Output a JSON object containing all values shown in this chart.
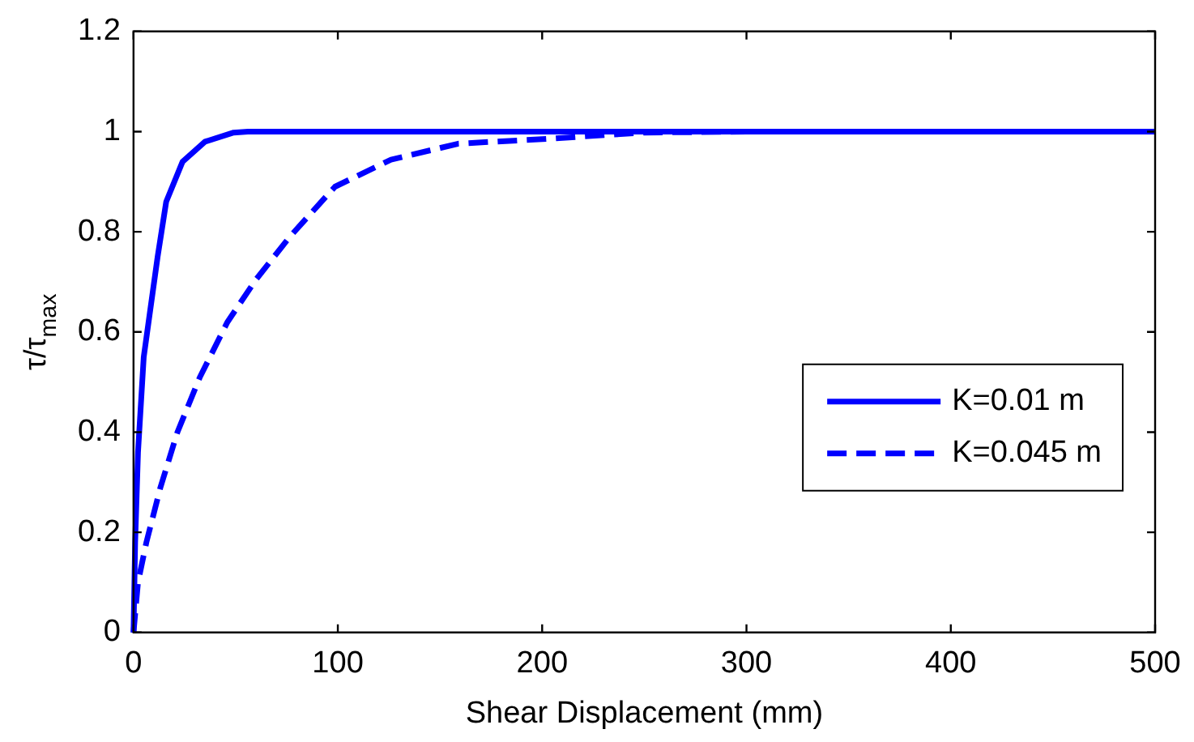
{
  "chart_data": {
    "type": "line",
    "xlabel": "Shear Displacement (mm)",
    "ylabel": "τ/τ$_{max}$",
    "xlim": [
      0,
      500
    ],
    "xticks": [
      0,
      100,
      200,
      300,
      400,
      500
    ],
    "ylim": [
      0,
      1.2
    ],
    "yticks": [
      0,
      0.2,
      0.4,
      0.6,
      0.8,
      1,
      1.2
    ],
    "grid": false,
    "legend": "right",
    "marker": "none",
    "series": [
      {
        "name": "K=0.01 m",
        "color": "#0000ff",
        "line_style": "solid",
        "x": [
          0,
          0.8,
          2.2,
          5,
          11.8,
          16,
          24,
          35,
          49,
          56,
          100,
          200,
          300,
          400,
          500
        ],
        "values": [
          0,
          0.18,
          0.36,
          0.55,
          0.75,
          0.86,
          0.94,
          0.98,
          0.998,
          1,
          1,
          1,
          1,
          1,
          1
        ]
      },
      {
        "name": "K=0.045 m",
        "color": "#0000ff",
        "line_style": "dashed",
        "x": [
          0,
          2.2,
          6.3,
          13.2,
          21.5,
          32.5,
          46,
          60,
          76.5,
          98.6,
          126,
          159,
          200,
          250,
          300,
          400,
          500
        ],
        "values": [
          0,
          0.1,
          0.18,
          0.29,
          0.4,
          0.51,
          0.62,
          0.705,
          0.79,
          0.89,
          0.944,
          0.976,
          0.985,
          0.998,
          1,
          1,
          1
        ]
      }
    ]
  }
}
